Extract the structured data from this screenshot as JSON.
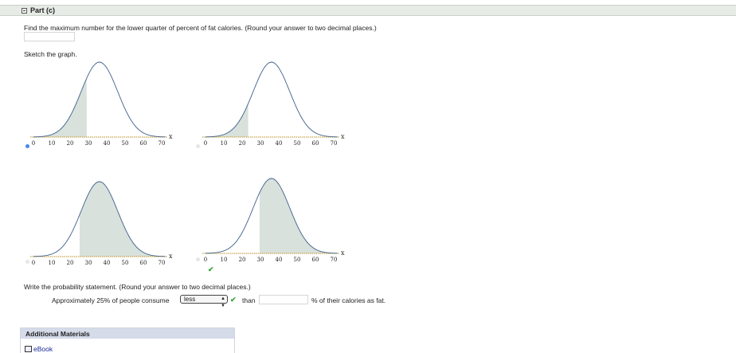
{
  "part": {
    "title": "Part (c)"
  },
  "question": "Find the maximum number for the lower quarter of percent of fat calories. (Round your answer to two decimal places.)",
  "answer_value": "",
  "sketch_label": "Sketch the graph.",
  "graphs": {
    "axis_label": "x",
    "ticks": [
      "0",
      "10",
      "20",
      "30",
      "40",
      "50",
      "60",
      "70"
    ],
    "mean": 36,
    "sd": 10,
    "xmin": 0,
    "xmax": 72,
    "options": [
      {
        "shade": "left",
        "cut": 29.3,
        "selected": true
      },
      {
        "shade": "left",
        "cut": 23.5,
        "selected": false
      },
      {
        "shade": "right",
        "cut": 25,
        "selected": false
      },
      {
        "shade": "right",
        "cut": 29.3,
        "selected": false
      }
    ],
    "checked_option": 3
  },
  "probability": {
    "label": "Write the probability statement. (Round your answer to two decimal places.)",
    "prefix": "Approximately 25% of people consume",
    "select_value": "less",
    "than": "than",
    "input_value": "",
    "suffix": "% of their calories as fat."
  },
  "materials": {
    "title": "Additional Materials",
    "ebook": "eBook"
  },
  "colors": {
    "curve": "#3c5e8a",
    "shade": "#d8e1dc",
    "axis": "#c9a54a",
    "check": "#3aa43a",
    "radio_on": "#4f86e8"
  }
}
